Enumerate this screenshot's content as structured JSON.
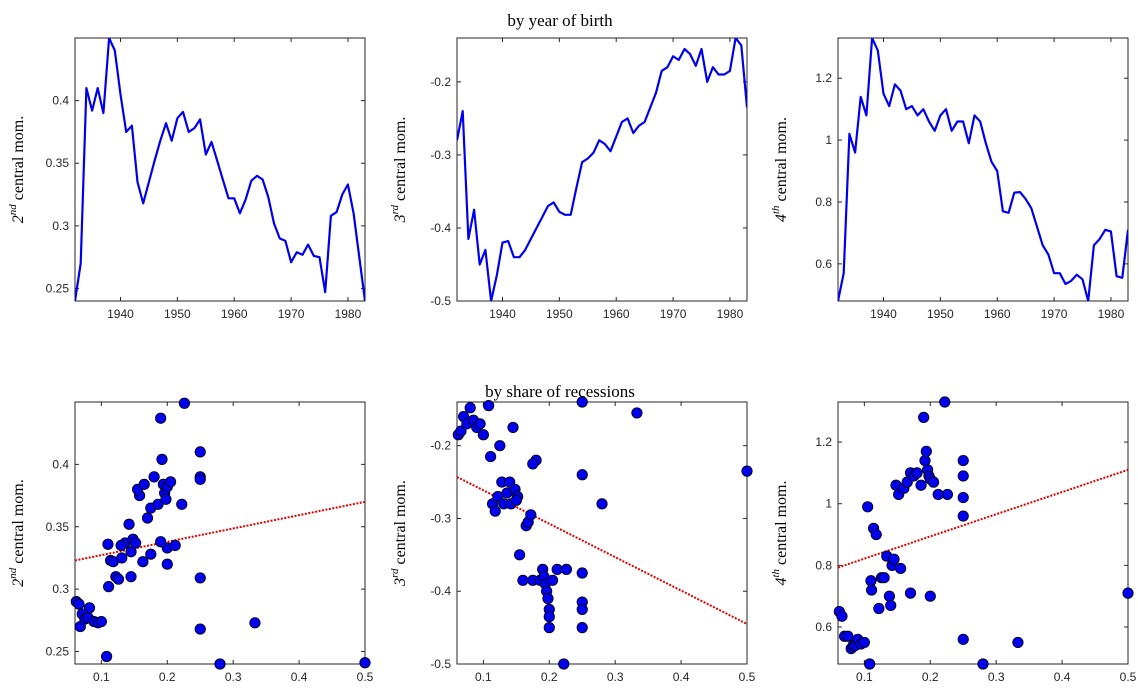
{
  "titles": {
    "top": "by year of birth",
    "bottom": "by share of recessions"
  },
  "colors": {
    "line": "#0000ee",
    "fit": "#e00000",
    "axis": "#262626",
    "marker_edge": "#000000"
  },
  "ylabels": [
    {
      "ord": "2",
      "sup": "nd",
      "rest": " central mom."
    },
    {
      "ord": "3",
      "sup": "rd",
      "rest": " central mom."
    },
    {
      "ord": "4",
      "sup": "th",
      "rest": " central mom."
    }
  ],
  "chart_data": [
    {
      "type": "line",
      "row": 1,
      "col": 1,
      "xlim": [
        1932,
        1983
      ],
      "ylim": [
        0.24,
        0.45
      ],
      "xticks": [
        1940,
        1950,
        1960,
        1970,
        1980
      ],
      "yticks": [
        0.25,
        0.3,
        0.35,
        0.4
      ],
      "x": [
        1932,
        1933,
        1934,
        1935,
        1936,
        1937,
        1938,
        1939,
        1940,
        1941,
        1942,
        1943,
        1944,
        1945,
        1946,
        1947,
        1948,
        1949,
        1950,
        1951,
        1952,
        1953,
        1954,
        1955,
        1956,
        1957,
        1958,
        1959,
        1960,
        1961,
        1962,
        1963,
        1964,
        1965,
        1966,
        1967,
        1968,
        1969,
        1970,
        1971,
        1972,
        1973,
        1974,
        1975,
        1976,
        1977,
        1978,
        1979,
        1980,
        1981,
        1982,
        1983
      ],
      "y": [
        0.24,
        0.27,
        0.41,
        0.392,
        0.41,
        0.39,
        0.45,
        0.44,
        0.405,
        0.375,
        0.38,
        0.335,
        0.318,
        0.335,
        0.352,
        0.368,
        0.382,
        0.368,
        0.386,
        0.391,
        0.375,
        0.378,
        0.385,
        0.357,
        0.367,
        0.352,
        0.337,
        0.322,
        0.322,
        0.31,
        0.321,
        0.336,
        0.34,
        0.337,
        0.323,
        0.302,
        0.29,
        0.288,
        0.271,
        0.279,
        0.277,
        0.285,
        0.276,
        0.275,
        0.247,
        0.308,
        0.311,
        0.325,
        0.333,
        0.31,
        0.275,
        0.24
      ]
    },
    {
      "type": "line",
      "row": 1,
      "col": 2,
      "xlim": [
        1932,
        1983
      ],
      "ylim": [
        -0.5,
        -0.14
      ],
      "xticks": [
        1940,
        1950,
        1960,
        1970,
        1980
      ],
      "yticks": [
        -0.5,
        -0.4,
        -0.3,
        -0.2
      ],
      "x": [
        1932,
        1933,
        1934,
        1935,
        1936,
        1937,
        1938,
        1939,
        1940,
        1941,
        1942,
        1943,
        1944,
        1945,
        1946,
        1947,
        1948,
        1949,
        1950,
        1951,
        1952,
        1953,
        1954,
        1955,
        1956,
        1957,
        1958,
        1959,
        1960,
        1961,
        1962,
        1963,
        1964,
        1965,
        1966,
        1967,
        1968,
        1969,
        1970,
        1971,
        1972,
        1973,
        1974,
        1975,
        1976,
        1977,
        1978,
        1979,
        1980,
        1981,
        1982,
        1983
      ],
      "y": [
        -0.28,
        -0.24,
        -0.415,
        -0.375,
        -0.45,
        -0.43,
        -0.5,
        -0.465,
        -0.42,
        -0.418,
        -0.44,
        -0.44,
        -0.43,
        -0.415,
        -0.4,
        -0.385,
        -0.37,
        -0.365,
        -0.378,
        -0.382,
        -0.382,
        -0.345,
        -0.31,
        -0.305,
        -0.297,
        -0.28,
        -0.285,
        -0.295,
        -0.275,
        -0.255,
        -0.25,
        -0.27,
        -0.26,
        -0.255,
        -0.235,
        -0.215,
        -0.185,
        -0.18,
        -0.165,
        -0.17,
        -0.155,
        -0.162,
        -0.178,
        -0.155,
        -0.2,
        -0.18,
        -0.19,
        -0.19,
        -0.185,
        -0.14,
        -0.15,
        -0.235
      ]
    },
    {
      "type": "line",
      "row": 1,
      "col": 3,
      "xlim": [
        1932,
        1983
      ],
      "ylim": [
        0.48,
        1.33
      ],
      "xticks": [
        1940,
        1950,
        1960,
        1970,
        1980
      ],
      "yticks": [
        0.6,
        0.8,
        1,
        1.2
      ],
      "x": [
        1932,
        1933,
        1934,
        1935,
        1936,
        1937,
        1938,
        1939,
        1940,
        1941,
        1942,
        1943,
        1944,
        1945,
        1946,
        1947,
        1948,
        1949,
        1950,
        1951,
        1952,
        1953,
        1954,
        1955,
        1956,
        1957,
        1958,
        1959,
        1960,
        1961,
        1962,
        1963,
        1964,
        1965,
        1966,
        1967,
        1968,
        1969,
        1970,
        1971,
        1972,
        1973,
        1974,
        1975,
        1976,
        1977,
        1978,
        1979,
        1980,
        1981,
        1982,
        1983
      ],
      "y": [
        0.48,
        0.57,
        1.02,
        0.96,
        1.14,
        1.08,
        1.33,
        1.29,
        1.15,
        1.11,
        1.18,
        1.16,
        1.1,
        1.11,
        1.08,
        1.1,
        1.06,
        1.03,
        1.08,
        1.1,
        1.03,
        1.06,
        1.06,
        0.99,
        1.08,
        1.06,
        0.99,
        0.93,
        0.9,
        0.77,
        0.765,
        0.83,
        0.832,
        0.81,
        0.78,
        0.72,
        0.66,
        0.63,
        0.57,
        0.57,
        0.535,
        0.545,
        0.565,
        0.55,
        0.48,
        0.66,
        0.68,
        0.71,
        0.705,
        0.56,
        0.555,
        0.71
      ]
    },
    {
      "type": "scatter",
      "row": 2,
      "col": 1,
      "xlim": [
        0.06,
        0.5
      ],
      "ylim": [
        0.24,
        0.45
      ],
      "xticks": [
        0.1,
        0.2,
        0.3,
        0.4,
        0.5
      ],
      "xticklabels": [
        "0.1",
        "0.2",
        "0.3",
        "0.4",
        "0.5"
      ],
      "yticks": [
        0.25,
        0.3,
        0.35,
        0.4
      ],
      "fit": {
        "x": [
          0.06,
          0.5
        ],
        "y": [
          0.323,
          0.37
        ]
      },
      "x": [
        0.062,
        0.066,
        0.068,
        0.071,
        0.075,
        0.08,
        0.082,
        0.089,
        0.095,
        0.1,
        0.108,
        0.111,
        0.114,
        0.118,
        0.122,
        0.126,
        0.131,
        0.136,
        0.142,
        0.145,
        0.148,
        0.152,
        0.158,
        0.163,
        0.17,
        0.175,
        0.18,
        0.186,
        0.19,
        0.192,
        0.194,
        0.196,
        0.198,
        0.2,
        0.2,
        0.205,
        0.212,
        0.222,
        0.226,
        0.25,
        0.25,
        0.25,
        0.25,
        0.25,
        0.28,
        0.333,
        0.5,
        0.11,
        0.13,
        0.155,
        0.165,
        0.2,
        0.145,
        0.175,
        0.19
      ],
      "y": [
        0.29,
        0.288,
        0.27,
        0.28,
        0.276,
        0.277,
        0.285,
        0.274,
        0.273,
        0.274,
        0.246,
        0.302,
        0.323,
        0.322,
        0.31,
        0.308,
        0.325,
        0.337,
        0.352,
        0.31,
        0.34,
        0.337,
        0.375,
        0.322,
        0.357,
        0.365,
        0.39,
        0.368,
        0.437,
        0.404,
        0.384,
        0.377,
        0.372,
        0.382,
        0.333,
        0.386,
        0.335,
        0.368,
        0.449,
        0.41,
        0.39,
        0.388,
        0.309,
        0.268,
        0.24,
        0.273,
        0.241,
        0.336,
        0.335,
        0.38,
        0.384,
        0.32,
        0.33,
        0.328,
        0.338
      ]
    },
    {
      "type": "scatter",
      "row": 2,
      "col": 2,
      "xlim": [
        0.06,
        0.5
      ],
      "ylim": [
        -0.5,
        -0.14
      ],
      "xticks": [
        0.1,
        0.2,
        0.3,
        0.4,
        0.5
      ],
      "xticklabels": [
        "0.1",
        "0.2",
        "0.3",
        "0.4",
        "0.5"
      ],
      "yticks": [
        -0.5,
        -0.4,
        -0.3,
        -0.2
      ],
      "fit": {
        "x": [
          0.06,
          0.5
        ],
        "y": [
          -0.243,
          -0.445
        ]
      },
      "x": [
        0.062,
        0.066,
        0.07,
        0.075,
        0.08,
        0.085,
        0.09,
        0.095,
        0.1,
        0.108,
        0.111,
        0.114,
        0.118,
        0.122,
        0.125,
        0.128,
        0.131,
        0.136,
        0.14,
        0.142,
        0.145,
        0.148,
        0.152,
        0.155,
        0.16,
        0.165,
        0.168,
        0.172,
        0.175,
        0.18,
        0.186,
        0.19,
        0.192,
        0.194,
        0.196,
        0.198,
        0.2,
        0.2,
        0.2,
        0.205,
        0.212,
        0.222,
        0.226,
        0.25,
        0.25,
        0.25,
        0.25,
        0.25,
        0.25,
        0.28,
        0.333,
        0.5,
        0.15,
        0.175
      ],
      "y": [
        -0.185,
        -0.18,
        -0.16,
        -0.17,
        -0.148,
        -0.165,
        -0.175,
        -0.17,
        -0.185,
        -0.145,
        -0.215,
        -0.28,
        -0.29,
        -0.27,
        -0.2,
        -0.25,
        -0.28,
        -0.265,
        -0.25,
        -0.28,
        -0.175,
        -0.26,
        -0.27,
        -0.35,
        -0.385,
        -0.31,
        -0.305,
        -0.295,
        -0.385,
        -0.22,
        -0.385,
        -0.37,
        -0.38,
        -0.39,
        -0.4,
        -0.41,
        -0.425,
        -0.435,
        -0.45,
        -0.385,
        -0.37,
        -0.5,
        -0.37,
        -0.14,
        -0.24,
        -0.375,
        -0.415,
        -0.425,
        -0.45,
        -0.28,
        -0.155,
        -0.235,
        -0.275,
        -0.225
      ]
    },
    {
      "type": "scatter",
      "row": 2,
      "col": 3,
      "xlim": [
        0.06,
        0.5
      ],
      "ylim": [
        0.48,
        1.33
      ],
      "xticks": [
        0.1,
        0.2,
        0.3,
        0.4,
        0.5
      ],
      "xticklabels": [
        "0.1",
        "0.2",
        "0.3",
        "0.4",
        "0.5"
      ],
      "yticks": [
        0.6,
        0.8,
        1,
        1.2
      ],
      "fit": {
        "x": [
          0.06,
          0.5
        ],
        "y": [
          0.793,
          1.11
        ]
      },
      "x": [
        0.062,
        0.066,
        0.07,
        0.075,
        0.08,
        0.083,
        0.086,
        0.09,
        0.095,
        0.1,
        0.105,
        0.108,
        0.111,
        0.114,
        0.118,
        0.122,
        0.126,
        0.13,
        0.134,
        0.138,
        0.142,
        0.145,
        0.148,
        0.152,
        0.155,
        0.16,
        0.165,
        0.17,
        0.175,
        0.18,
        0.186,
        0.19,
        0.192,
        0.194,
        0.196,
        0.198,
        0.2,
        0.2,
        0.205,
        0.212,
        0.222,
        0.226,
        0.25,
        0.25,
        0.25,
        0.25,
        0.25,
        0.28,
        0.333,
        0.5,
        0.11,
        0.14,
        0.17
      ],
      "y": [
        0.65,
        0.635,
        0.57,
        0.57,
        0.53,
        0.54,
        0.54,
        0.56,
        0.545,
        0.55,
        0.99,
        0.48,
        0.72,
        0.92,
        0.9,
        0.66,
        0.76,
        0.76,
        0.83,
        0.7,
        0.8,
        0.82,
        1.06,
        1.03,
        0.79,
        1.05,
        1.07,
        1.1,
        1.09,
        1.1,
        1.06,
        1.28,
        1.14,
        1.17,
        1.11,
        1.09,
        1.08,
        0.7,
        1.07,
        1.03,
        1.33,
        1.03,
        1.14,
        1.09,
        1.02,
        0.96,
        0.56,
        0.48,
        0.55,
        0.71,
        0.75,
        0.67,
        0.71
      ]
    }
  ]
}
